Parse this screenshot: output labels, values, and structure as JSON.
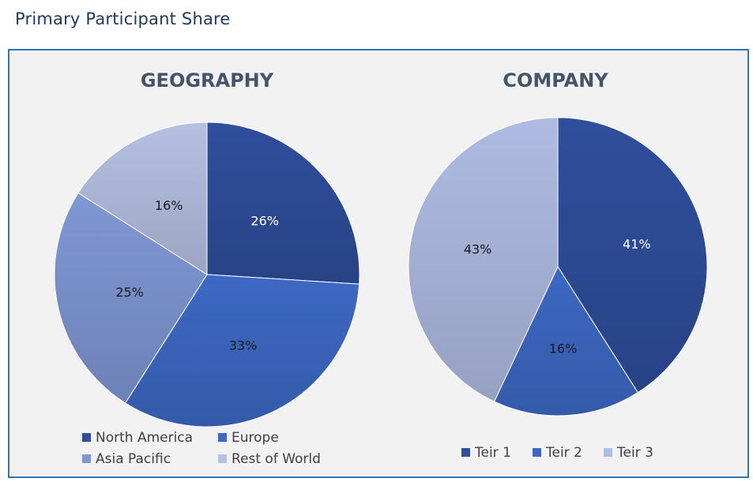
{
  "page": {
    "title": "Primary Participant Share"
  },
  "chart_data": [
    {
      "type": "pie",
      "title": "GEOGRAPHY",
      "categories": [
        "North America",
        "Europe",
        "Asia Pacific",
        "Rest of World"
      ],
      "values": [
        26,
        33,
        25,
        16
      ],
      "labels": [
        "26%",
        "33%",
        "25%",
        "16%"
      ],
      "colors": [
        "#2f4e9c",
        "#3d69c4",
        "#7f97d4",
        "#b5c0e2"
      ],
      "label_colors": [
        "#ffffff",
        "#1a1a1a",
        "#1a1a1a",
        "#1a1a1a"
      ],
      "legend": "bottom"
    },
    {
      "type": "pie",
      "title": "COMPANY",
      "categories": [
        "Teir 1",
        "Teir 2",
        "Teir 3"
      ],
      "values": [
        41,
        16,
        43
      ],
      "labels": [
        "41%",
        "16%",
        "43%"
      ],
      "colors": [
        "#2f4e9c",
        "#3d69c4",
        "#aebbe2"
      ],
      "label_colors": [
        "#ffffff",
        "#1a1a1a",
        "#1a1a1a"
      ],
      "legend": "bottom"
    }
  ]
}
